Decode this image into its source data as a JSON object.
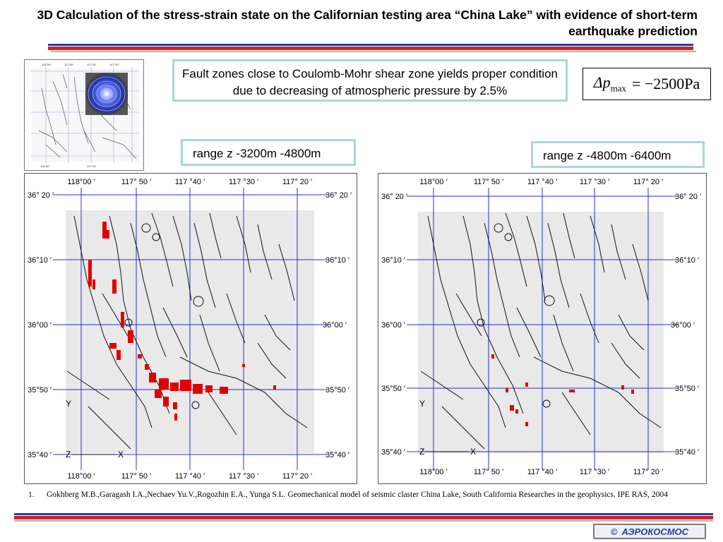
{
  "title": "3D Calculation of the stress-strain state on the Californian testing area “China Lake” with evidence of short-term earthquake prediction",
  "caption": "Fault zones close to Coulomb-Mohr shear zone yields proper condition due to decreasing of atmospheric pressure by 2.5%",
  "formula": {
    "lhs": "Δp",
    "sub": "max",
    "rhs": "= −2500Pa"
  },
  "range_left": "range z -3200m -4800m",
  "range_right": "range z -4800m -6400m",
  "map_labels": {
    "lon": [
      "118°00 ′",
      "117° 50 ′",
      "117 °40 ′",
      "117 °30 ′",
      "117° 20 ′"
    ],
    "lat": [
      "36° 20 ′",
      "36°10 ′",
      "36°00 ′",
      "35°50 ′",
      "35°40 ′"
    ],
    "y_axis": "Y",
    "z_axis": "Z",
    "x_axis": "X"
  },
  "reference": {
    "num": "1.",
    "text": "Gokhberg M.B.,Garagash I.A.,Nechaev Yu.V.,Rogozhin E.A., Yunga S.L. Geomechanical model of seismic claster China Lake, South California Researches in the geophysics. IPE RAS, 2004"
  },
  "logo": {
    "symbol": "©",
    "text": "АЭРОКОСМОС"
  },
  "colors": {
    "accent_blue": "#1f3fb0",
    "accent_red": "#d21e24",
    "box_border": "#a7d7db",
    "anomaly": "#e00000"
  }
}
